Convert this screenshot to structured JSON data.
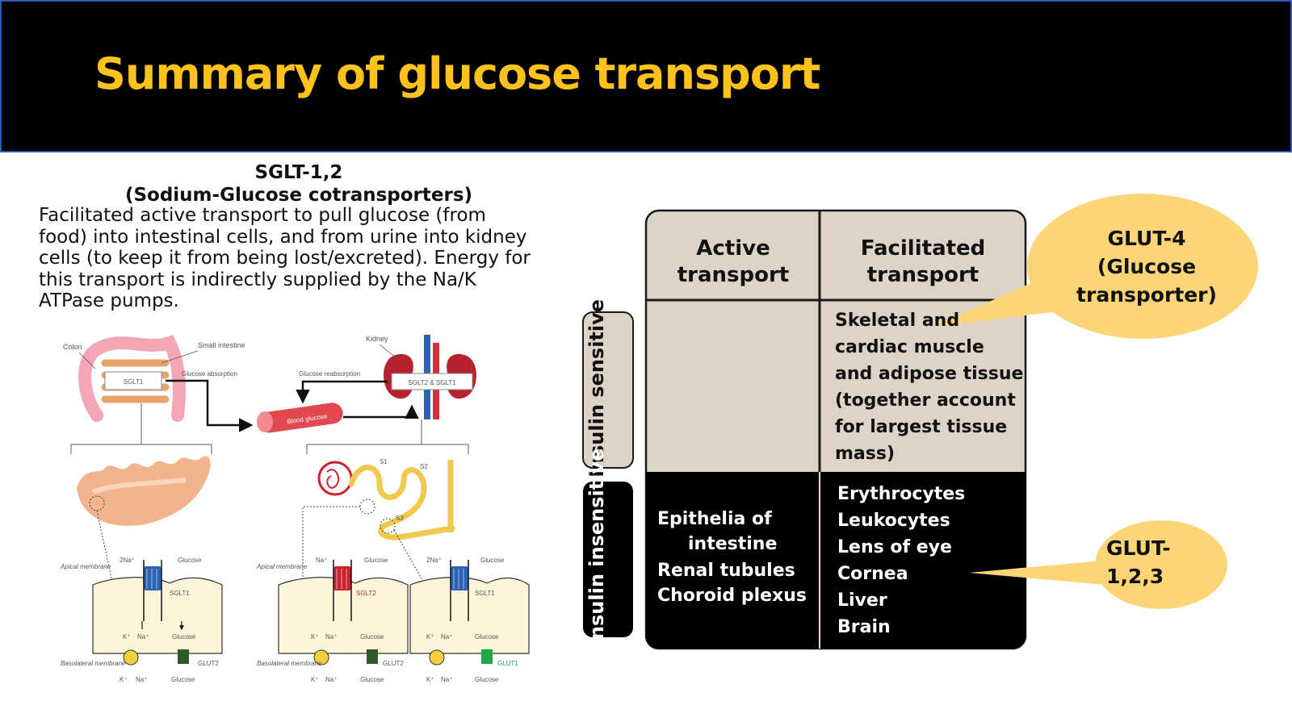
{
  "slide": {
    "title": "Summary of glucose transport"
  },
  "sglt": {
    "heading_line1": "SGLT-1,2",
    "heading_line2": "(Sodium-Glucose cotransporters)",
    "description": "Facilitated active transport to pull glucose (from food) into intestinal cells, and from urine into kidney cells (to keep it from being lost/excreted).  Energy for this transport is indirectly supplied by the Na/K ATPase pumps."
  },
  "illustration": {
    "colon": "Colon",
    "small_intestine": "Small intestine",
    "sglt1_box": "SGLT1",
    "glucose_absorption": "Glucose absorption",
    "blood_glucose": "Blood glucose",
    "kidney": "Kidney",
    "glucose_reabsorption": "Glucose reabsorption",
    "sglt2_sglt1_box": "SGLT2 & SGLT1",
    "s1": "S1",
    "s2": "S2",
    "s3": "S3",
    "apical_membrane": "Apical membrane",
    "basolateral_membrane": "Basolateral membrane",
    "two_na": "2Na⁺",
    "na": "Na⁺",
    "k": "K⁺",
    "glucose": "Glucose",
    "sglt1": "SGLT1",
    "sglt2": "SGLT2",
    "glut2": "GLUT2",
    "glut1": "GLUT1"
  },
  "table": {
    "col_active": "Active transport",
    "col_facilitated": "Facilitated transport",
    "row_sensitive": "Insulin sensitive",
    "row_insensitive": "Insulin insensitive",
    "sensitive_facilitated": [
      "Skeletal and",
      "cardiac muscle",
      "and adipose tissue",
      "(together account",
      "for largest tissue",
      "mass)"
    ],
    "insensitive_active": [
      "Epithelia of",
      "intestine",
      "Renal tubules",
      "Choroid plexus"
    ],
    "insensitive_facilitated": [
      "Erythrocytes",
      "Leukocytes",
      "Lens of eye",
      "Cornea",
      "Liver",
      "Brain"
    ]
  },
  "callouts": {
    "glut4": [
      "GLUT-4",
      "(Glucose",
      "transporter)"
    ],
    "glut123": [
      "GLUT-",
      "1,2,3"
    ]
  },
  "colors": {
    "title": "#ffc21a",
    "header_bg": "#000000",
    "table_beige": "#ddd3c7",
    "bubble": "#fcd576"
  }
}
